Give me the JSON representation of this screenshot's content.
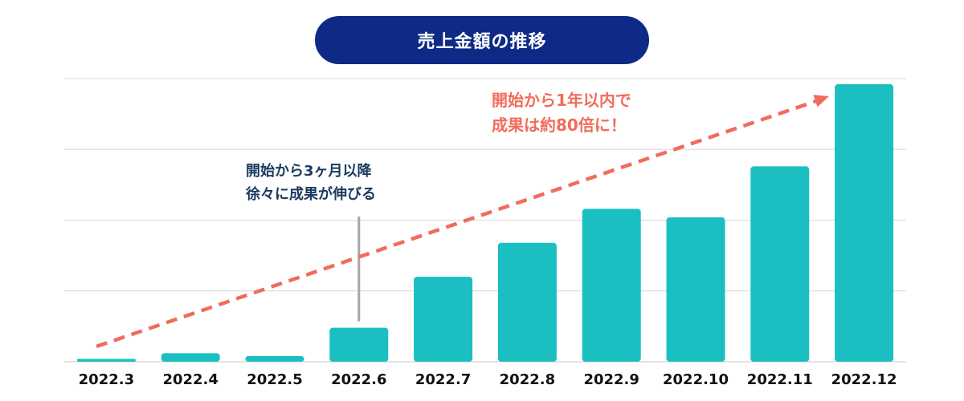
{
  "title": "売上金額の推移",
  "colors": {
    "title_bg": "#0d2a86",
    "bar": "#1bbfc2",
    "trend_arrow": "#f26b5b",
    "grid": "#d9d9d9",
    "callout_line": "#a6a6a6",
    "note_dark": "#1a3a5e",
    "note_accent": "#f26b5b"
  },
  "annotations": {
    "mid": {
      "line1": "開始から3ヶ月以降",
      "line2": "徐々に成果が伸びる"
    },
    "top": {
      "line1": "開始から1年以内で",
      "line2": "成果は約80倍に！"
    }
  },
  "chart_data": {
    "type": "bar",
    "title": "売上金額の推移",
    "categories": [
      "2022.3",
      "2022.4",
      "2022.5",
      "2022.6",
      "2022.7",
      "2022.8",
      "2022.9",
      "2022.10",
      "2022.11",
      "2022.12"
    ],
    "values": [
      1,
      3,
      2,
      12,
      30,
      42,
      54,
      51,
      69,
      98
    ],
    "ylim": [
      0,
      100
    ],
    "y_tick_labels_shown": false,
    "grid": true,
    "trend_arrow": true
  }
}
